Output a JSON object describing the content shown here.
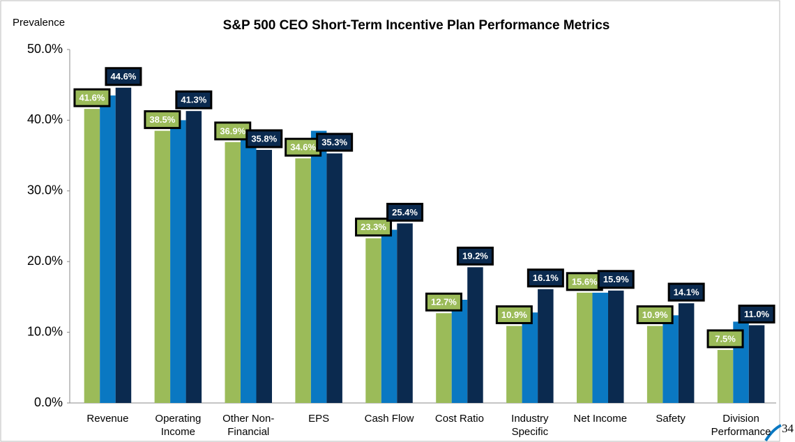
{
  "chart_data": {
    "type": "bar",
    "title": "S&P 500 CEO Short-Term Incentive Plan Performance Metrics",
    "y_label": "Prevalence",
    "page_number": "34",
    "categories": [
      "Revenue",
      "Operating Income",
      "Other Non-Financial",
      "EPS",
      "Cash Flow",
      "Cost Ratio",
      "Industry Specific",
      "Net Income",
      "Safety",
      "Division Performance"
    ],
    "series": [
      {
        "color": "#9bbb59",
        "values": [
          41.6,
          38.5,
          36.9,
          34.6,
          23.3,
          12.7,
          10.9,
          15.6,
          10.9,
          7.5
        ],
        "value_labels": [
          "41.6%",
          "38.5%",
          "36.9%",
          "34.6%",
          "23.3%",
          "12.7%",
          "10.9%",
          "15.6%",
          "10.9%",
          "7.5%"
        ]
      },
      {
        "color": "#0a78c2",
        "values": [
          43.5,
          40.0,
          37.5,
          38.5,
          24.5,
          14.6,
          12.8,
          15.6,
          12.4,
          11.5
        ]
      },
      {
        "color": "#0b2a4f",
        "values": [
          44.6,
          41.3,
          35.8,
          35.3,
          25.4,
          19.2,
          16.1,
          15.9,
          14.1,
          11.0
        ],
        "value_labels": [
          "44.6%",
          "41.3%",
          "35.8%",
          "35.3%",
          "25.4%",
          "19.2%",
          "16.1%",
          "15.9%",
          "14.1%",
          "11.0%"
        ]
      }
    ],
    "ylim": [
      0,
      50
    ],
    "yticks": [
      {
        "value": 0,
        "label": "0.0%"
      },
      {
        "value": 10,
        "label": "10.0%"
      },
      {
        "value": 20,
        "label": "20.0%"
      },
      {
        "value": 30,
        "label": "30.0%"
      },
      {
        "value": 40,
        "label": "40.0%"
      },
      {
        "value": 50,
        "label": "50.0%"
      }
    ]
  }
}
